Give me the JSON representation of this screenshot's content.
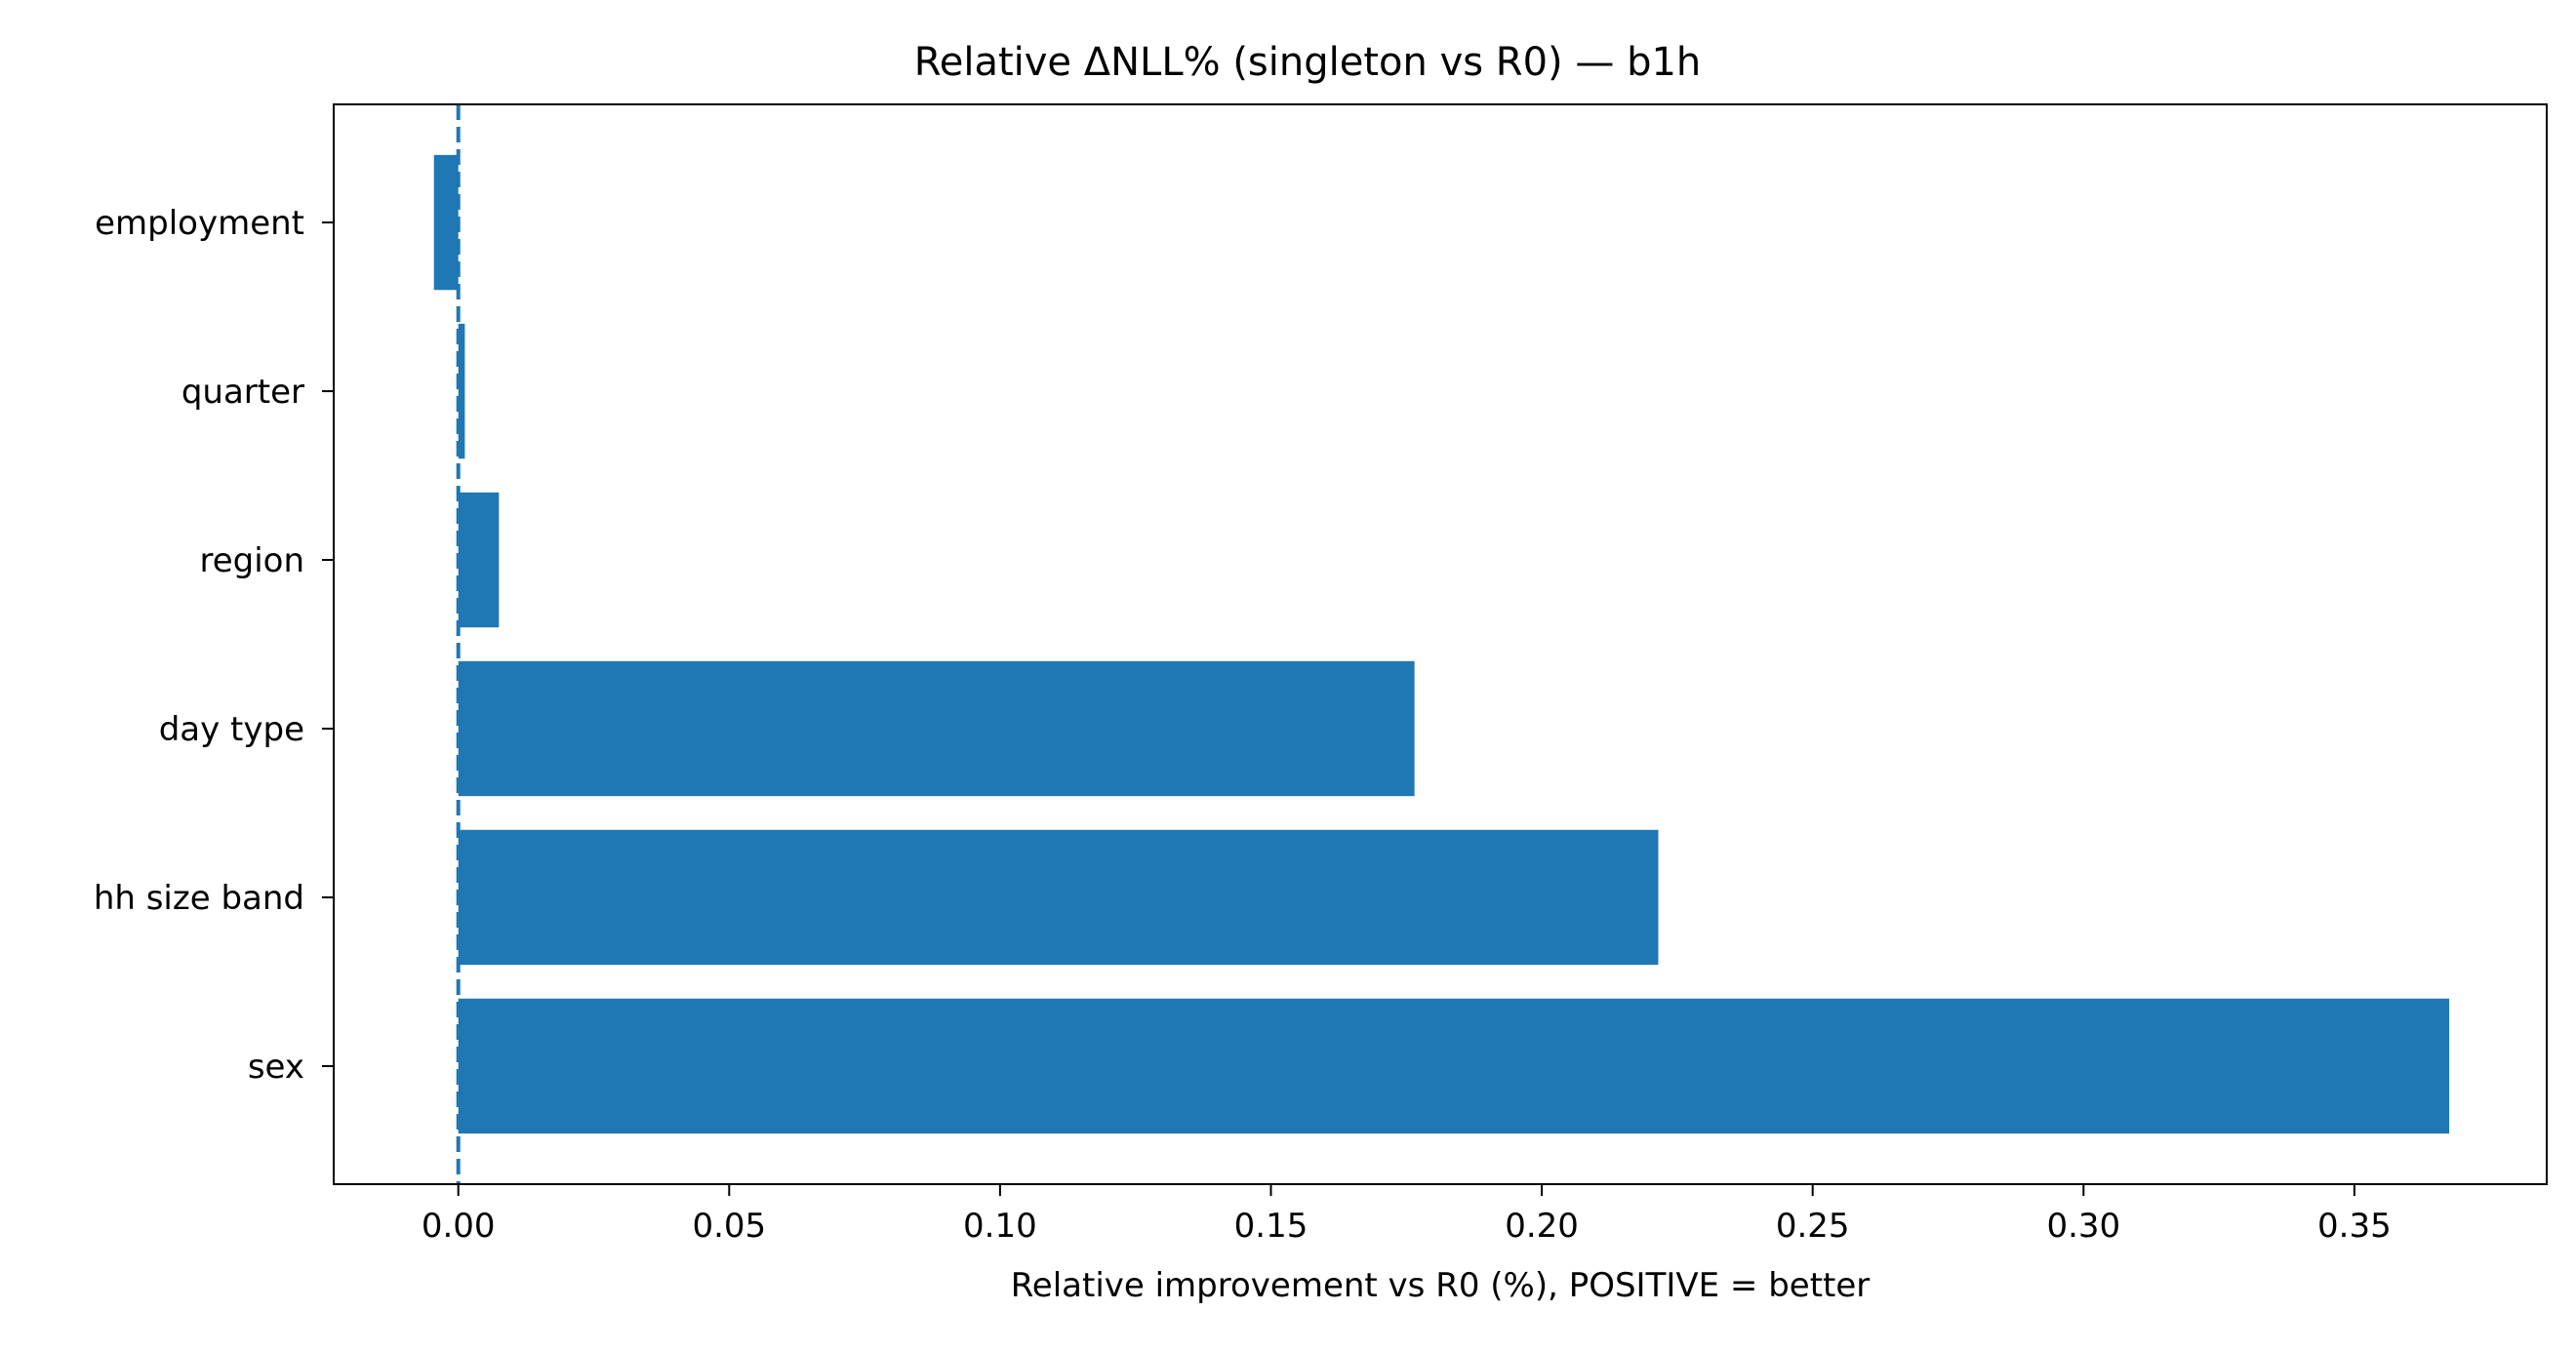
{
  "chart_data": {
    "type": "bar",
    "orientation": "horizontal",
    "title": "Relative ΔNLL% (singleton vs R0) — b1h",
    "xlabel": "Relative improvement vs R0 (%), POSITIVE = better",
    "ylabel": "",
    "categories": [
      "employment",
      "quarter",
      "region",
      "day type",
      "hh size band",
      "sex"
    ],
    "values": [
      -0.0045,
      0.0012,
      0.0075,
      0.1765,
      0.2215,
      0.3675
    ],
    "xlim": [
      -0.023,
      0.3855
    ],
    "xticks": [
      0.0,
      0.05,
      0.1,
      0.15,
      0.2,
      0.25,
      0.3,
      0.35
    ],
    "xtick_labels": [
      "0.00",
      "0.05",
      "0.10",
      "0.15",
      "0.20",
      "0.25",
      "0.30",
      "0.35"
    ],
    "reference_line": {
      "x": 0,
      "style": "dashed"
    },
    "grid": false,
    "legend": "none",
    "colors": {
      "bar": "#1f77b4",
      "reference_line": "#1f77b4",
      "axis": "#000000"
    }
  }
}
